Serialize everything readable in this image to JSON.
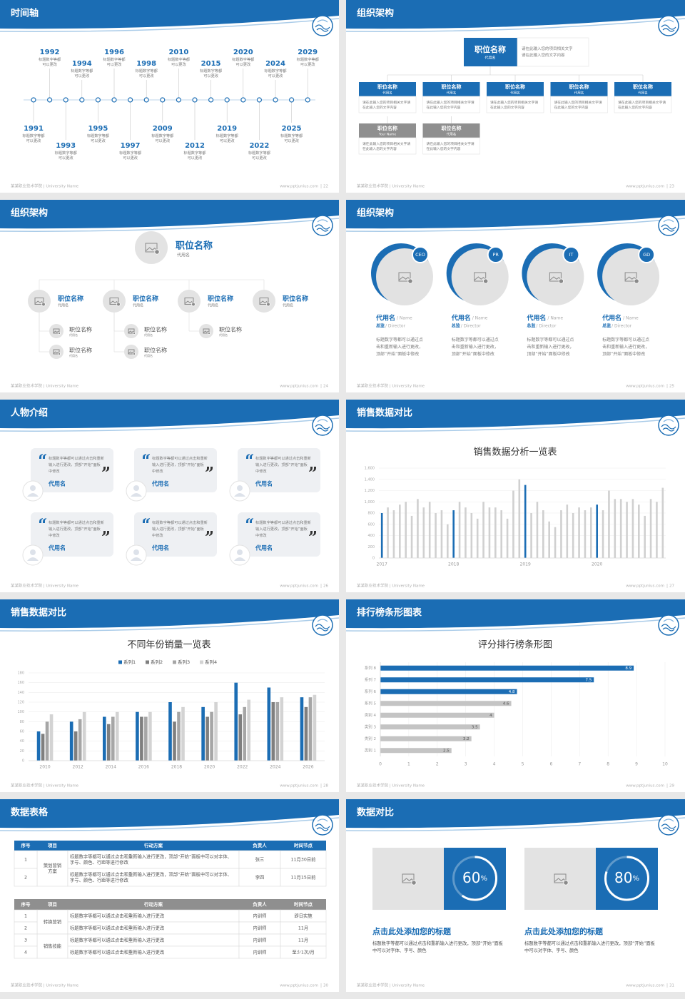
{
  "footer": {
    "school": "某某职业技术学院 | University Name",
    "site": "www.pptjunius.com"
  },
  "slides": [
    {
      "title": "时间轴",
      "page": 22,
      "events": [
        {
          "year": 1991,
          "text": "标题数字等都可以更改"
        },
        {
          "year": 1992,
          "text": "标题数字等都可以更改"
        },
        {
          "year": 1993,
          "text": "标题数字等都可以更改"
        },
        {
          "year": 1994,
          "text": "标题数字等都可以更改"
        },
        {
          "year": 1995,
          "text": "标题数字等都可以更改"
        },
        {
          "year": 1996,
          "text": "标题数字等都可以更改"
        },
        {
          "year": 1997,
          "text": "标题数字等都可以更改"
        },
        {
          "year": 1998,
          "text": "标题数字等都可以更改"
        },
        {
          "year": 2009,
          "text": "标题数字等都可以更改"
        },
        {
          "year": 2010,
          "text": "标题数字等都可以更改"
        },
        {
          "year": 2012,
          "text": "标题数字等都可以更改"
        },
        {
          "year": 2015,
          "text": "标题数字等都可以更改"
        },
        {
          "year": 2019,
          "text": "标题数字等都可以更改"
        },
        {
          "year": 2020,
          "text": "标题数字等都可以更改"
        },
        {
          "year": 2022,
          "text": "标题数字等都可以更改"
        },
        {
          "year": 2024,
          "text": "标题数字等都可以更改"
        },
        {
          "year": 2025,
          "text": "标题数字等都可以更改"
        },
        {
          "year": 2029,
          "text": "标题数字等都可以更改"
        }
      ]
    },
    {
      "title": "组织架构",
      "page": 23,
      "top": {
        "name": "职位名称",
        "alias": "代用名",
        "desc": "请在此输入您的项目相关文字请在此输入您的文字内容"
      },
      "row1": [
        {
          "name": "职位名称",
          "alias": "代用名",
          "desc": "请在此输入您的项目相关文字请在此输入您的文字内容"
        },
        {
          "name": "职位名称",
          "alias": "代用名",
          "desc": "请在此输入您的项目相关文字请在此输入您的文字内容"
        },
        {
          "name": "职位名称",
          "alias": "代用名",
          "desc": "请在此输入您的项目相关文字请在此输入您的文字内容"
        },
        {
          "name": "职位名称",
          "alias": "代用名",
          "desc": "请在此输入您的项目相关文字请在此输入您的文字内容"
        },
        {
          "name": "职位名称",
          "alias": "代用名",
          "desc": "请在此输入您的项目相关文字请在此输入您的文字内容"
        }
      ],
      "row2": [
        {
          "name": "职位名称",
          "alias": "Your Name",
          "desc": "请在此输入您的项目相关文字请在此输入您的文字内容"
        },
        {
          "name": "职位名称",
          "alias": "代用名",
          "desc": "请在此输入您的项目相关文字请在此输入您的文字内容"
        }
      ]
    },
    {
      "title": "组织架构",
      "page": 24,
      "top": {
        "name": "职位名称",
        "alias": "代用名"
      },
      "groups": [
        {
          "name": "职位名称",
          "alias": "代用名",
          "members": [
            {
              "name": "职位名称",
              "alias": "代用名"
            },
            {
              "name": "职位名称",
              "alias": "代用名"
            }
          ]
        },
        {
          "name": "职位名称",
          "alias": "代用名",
          "members": [
            {
              "name": "职位名称",
              "alias": "代用名"
            },
            {
              "name": "职位名称",
              "alias": "代用名"
            }
          ]
        },
        {
          "name": "职位名称",
          "alias": "代用名",
          "members": [
            {
              "name": "职位名称",
              "alias": "代用名"
            }
          ]
        },
        {
          "name": "职位名称",
          "alias": "代用名",
          "members": []
        }
      ]
    },
    {
      "title": "组织架构",
      "page": 25,
      "people": [
        {
          "badge": "CEO",
          "name": "代用名",
          "name_en": "/ Name",
          "role": "总监",
          "role_en": "/ Director",
          "desc": "标题数字等都可以通过点击和重新输入进行更改，顶部“开始”面板中修改"
        },
        {
          "badge": "PR",
          "name": "代用名",
          "name_en": "/ Name",
          "role": "总监",
          "role_en": "/ Director",
          "desc": "标题数字等都可以通过点击和重新输入进行更改，顶部“开始”面板中修改"
        },
        {
          "badge": "IT",
          "name": "代用名",
          "name_en": "/ Name",
          "role": "总监",
          "role_en": "/ Director",
          "desc": "标题数字等都可以通过点击和重新输入进行更改，顶部“开始”面板中修改"
        },
        {
          "badge": "GD",
          "name": "代用名",
          "name_en": "/ Name",
          "role": "总监",
          "role_en": "/ Director",
          "desc": "标题数字等都可以通过点击和重新输入进行更改，顶部“开始”面板中修改"
        }
      ]
    },
    {
      "title": "人物介绍",
      "page": 26,
      "cards": [
        {
          "quote": "标题数字等都可以通过点击和重新输入进行更改，顶部“开始”面板中修改",
          "name": "代用名"
        },
        {
          "quote": "标题数字等都可以通过点击和重新输入进行更改，顶部“开始”面板中修改",
          "name": "代用名"
        },
        {
          "quote": "标题数字等都可以通过点击和重新输入进行更改，顶部“开始”面板中修改",
          "name": "代用名"
        },
        {
          "quote": "标题数字等都可以通过点击和重新输入进行更改，顶部“开始”面板中修改",
          "name": "代用名"
        },
        {
          "quote": "标题数字等都可以通过点击和重新输入进行更改，顶部“开始”面板中修改",
          "name": "代用名"
        },
        {
          "quote": "标题数字等都可以通过点击和重新输入进行更改，顶部“开始”面板中修改",
          "name": "代用名"
        }
      ]
    },
    {
      "title": "销售数据对比",
      "page": 27
    },
    {
      "title": "销售数据对比",
      "page": 28
    },
    {
      "title": "排行榜条形图表",
      "page": 29
    },
    {
      "title": "数据表格",
      "page": 30,
      "table1": {
        "header": [
          "序号",
          "项目",
          "行动方案",
          "负责人",
          "时间节点"
        ],
        "groups": [
          {
            "item": "策划营销方案",
            "rows": [
              [
                "1",
                "标题数字等都可以通过点击和重新输入进行更改，顶部“开始”面板中可以对字体、字号、颜色、行距等进行修改",
                "张三",
                "11月30日前"
              ],
              [
                "2",
                "标题数字等都可以通过点击和重新输入进行更改，顶部“开始”面板中可以对字体、字号、颜色、行距等进行修改",
                "李四",
                "11月15日前"
              ]
            ]
          }
        ]
      },
      "table2": {
        "header": [
          "序号",
          "项目",
          "行动方案",
          "负责人",
          "时间节点"
        ],
        "groups": [
          {
            "item": "转换营销",
            "rows": [
              [
                "1",
                "标题数字等都可以通过点击和重新输入进行更改",
                "内训师",
                "即日实施"
              ],
              [
                "2",
                "标题数字等都可以通过点击和重新输入进行更改",
                "内训师",
                "11月"
              ]
            ]
          },
          {
            "item": "销售技能",
            "rows": [
              [
                "3",
                "标题数字等都可以通过点击和重新输入进行更改",
                "内训师",
                "11月"
              ],
              [
                "4",
                "标题数字等都可以通过点击和重新输入进行更改",
                "内训师",
                "至少1次/月"
              ]
            ]
          }
        ]
      }
    },
    {
      "title": "数据对比",
      "page": 31,
      "panels": [
        {
          "value": 60,
          "unit": "%",
          "title": "点击此处添加您的标题",
          "text": "标题数字等都可以通过点击和重新输入进行更改，顶部“开始”面板中可以对字体、字号、颜色"
        },
        {
          "value": 80,
          "unit": "%",
          "title": "点击此处添加您的标题",
          "text": "标题数字等都可以通过点击和重新输入进行更改，顶部“开始”面板中可以对字体、字号、颜色"
        }
      ]
    }
  ],
  "chart_data": [
    {
      "type": "bar",
      "title": "销售数据分析一览表",
      "categories": [
        "2017",
        null,
        null,
        null,
        null,
        null,
        null,
        null,
        null,
        null,
        null,
        null,
        "2018",
        null,
        null,
        null,
        null,
        null,
        null,
        null,
        null,
        null,
        null,
        null,
        "2019",
        null,
        null,
        null,
        null,
        null,
        null,
        null,
        null,
        null,
        null,
        null,
        "2020",
        null,
        null,
        null,
        null,
        null,
        null,
        null,
        null,
        null,
        null,
        null
      ],
      "values": [
        800,
        900,
        850,
        950,
        1000,
        750,
        1050,
        900,
        1000,
        800,
        850,
        600,
        850,
        1000,
        900,
        800,
        700,
        1000,
        900,
        900,
        850,
        700,
        1200,
        1400,
        1300,
        800,
        1000,
        850,
        650,
        550,
        850,
        950,
        800,
        900,
        850,
        900,
        950,
        850,
        1200,
        1050,
        1050,
        1000,
        1050,
        950,
        750,
        1050,
        1000,
        1250
      ],
      "colors": [
        "#1b6db4",
        "#d0d0d0",
        "#d0d0d0",
        "#d0d0d0",
        "#d0d0d0",
        "#d0d0d0",
        "#d0d0d0",
        "#d0d0d0",
        "#d0d0d0",
        "#d0d0d0",
        "#d0d0d0",
        "#d0d0d0",
        "#1b6db4",
        "#d0d0d0",
        "#d0d0d0",
        "#d0d0d0",
        "#d0d0d0",
        "#d0d0d0",
        "#d0d0d0",
        "#d0d0d0",
        "#d0d0d0",
        "#d0d0d0",
        "#d0d0d0",
        "#d0d0d0",
        "#1b6db4",
        "#d0d0d0",
        "#d0d0d0",
        "#d0d0d0",
        "#d0d0d0",
        "#d0d0d0",
        "#d0d0d0",
        "#d0d0d0",
        "#d0d0d0",
        "#d0d0d0",
        "#d0d0d0",
        "#d0d0d0",
        "#1b6db4",
        "#d0d0d0",
        "#d0d0d0",
        "#d0d0d0",
        "#d0d0d0",
        "#d0d0d0",
        "#d0d0d0",
        "#d0d0d0",
        "#d0d0d0",
        "#d0d0d0",
        "#d0d0d0",
        "#d0d0d0"
      ],
      "ylim": [
        0,
        1600
      ],
      "yticks": [
        0,
        200,
        400,
        600,
        800,
        {
          "value": 1000,
          "label": "1,000"
        },
        {
          "value": 1200,
          "label": "1,200"
        },
        {
          "value": 1400,
          "label": "1,400"
        },
        {
          "value": 1600,
          "label": "1,600"
        }
      ],
      "grid": true
    },
    {
      "type": "bar",
      "title": "不同年份销量一览表",
      "categories": [
        "2010",
        "2012",
        "2014",
        "2016",
        "2018",
        "2020",
        "2022",
        "2024",
        "2026"
      ],
      "series": [
        {
          "name": "系列1",
          "color": "#1b6db4",
          "values": [
            60,
            80,
            90,
            100,
            120,
            110,
            160,
            150,
            130
          ]
        },
        {
          "name": "系列2",
          "color": "#7f7f7f",
          "values": [
            55,
            60,
            75,
            90,
            80,
            90,
            95,
            120,
            110
          ]
        },
        {
          "name": "系列3",
          "color": "#a6a6a6",
          "values": [
            80,
            85,
            90,
            90,
            100,
            100,
            110,
            120,
            130
          ]
        },
        {
          "name": "系列4",
          "color": "#d3d3d3",
          "values": [
            95,
            100,
            100,
            100,
            110,
            120,
            125,
            130,
            135
          ]
        }
      ],
      "ylim": [
        0,
        180
      ],
      "yticks": [
        0,
        20,
        40,
        60,
        80,
        100,
        120,
        140,
        160,
        180
      ],
      "grid": true,
      "legend": "top"
    },
    {
      "type": "barh",
      "title": "评分排行榜条形图",
      "categories": [
        "类别 1",
        "类别 2",
        "类别 3",
        "类别 4",
        "系列 5",
        "系列 6",
        "系列 7",
        "系列 8"
      ],
      "values": [
        2.5,
        3.2,
        3.5,
        4,
        4.6,
        4.8,
        7.5,
        8.9
      ],
      "colors": [
        "#c4c4c4",
        "#c4c4c4",
        "#c4c4c4",
        "#c4c4c4",
        "#c4c4c4",
        "#1b6db4",
        "#1b6db4",
        "#1b6db4"
      ],
      "xlim": [
        0,
        10
      ],
      "xticks": [
        0,
        1,
        2,
        3,
        4,
        5,
        6,
        7,
        8,
        9,
        10
      ],
      "grid": true
    }
  ]
}
